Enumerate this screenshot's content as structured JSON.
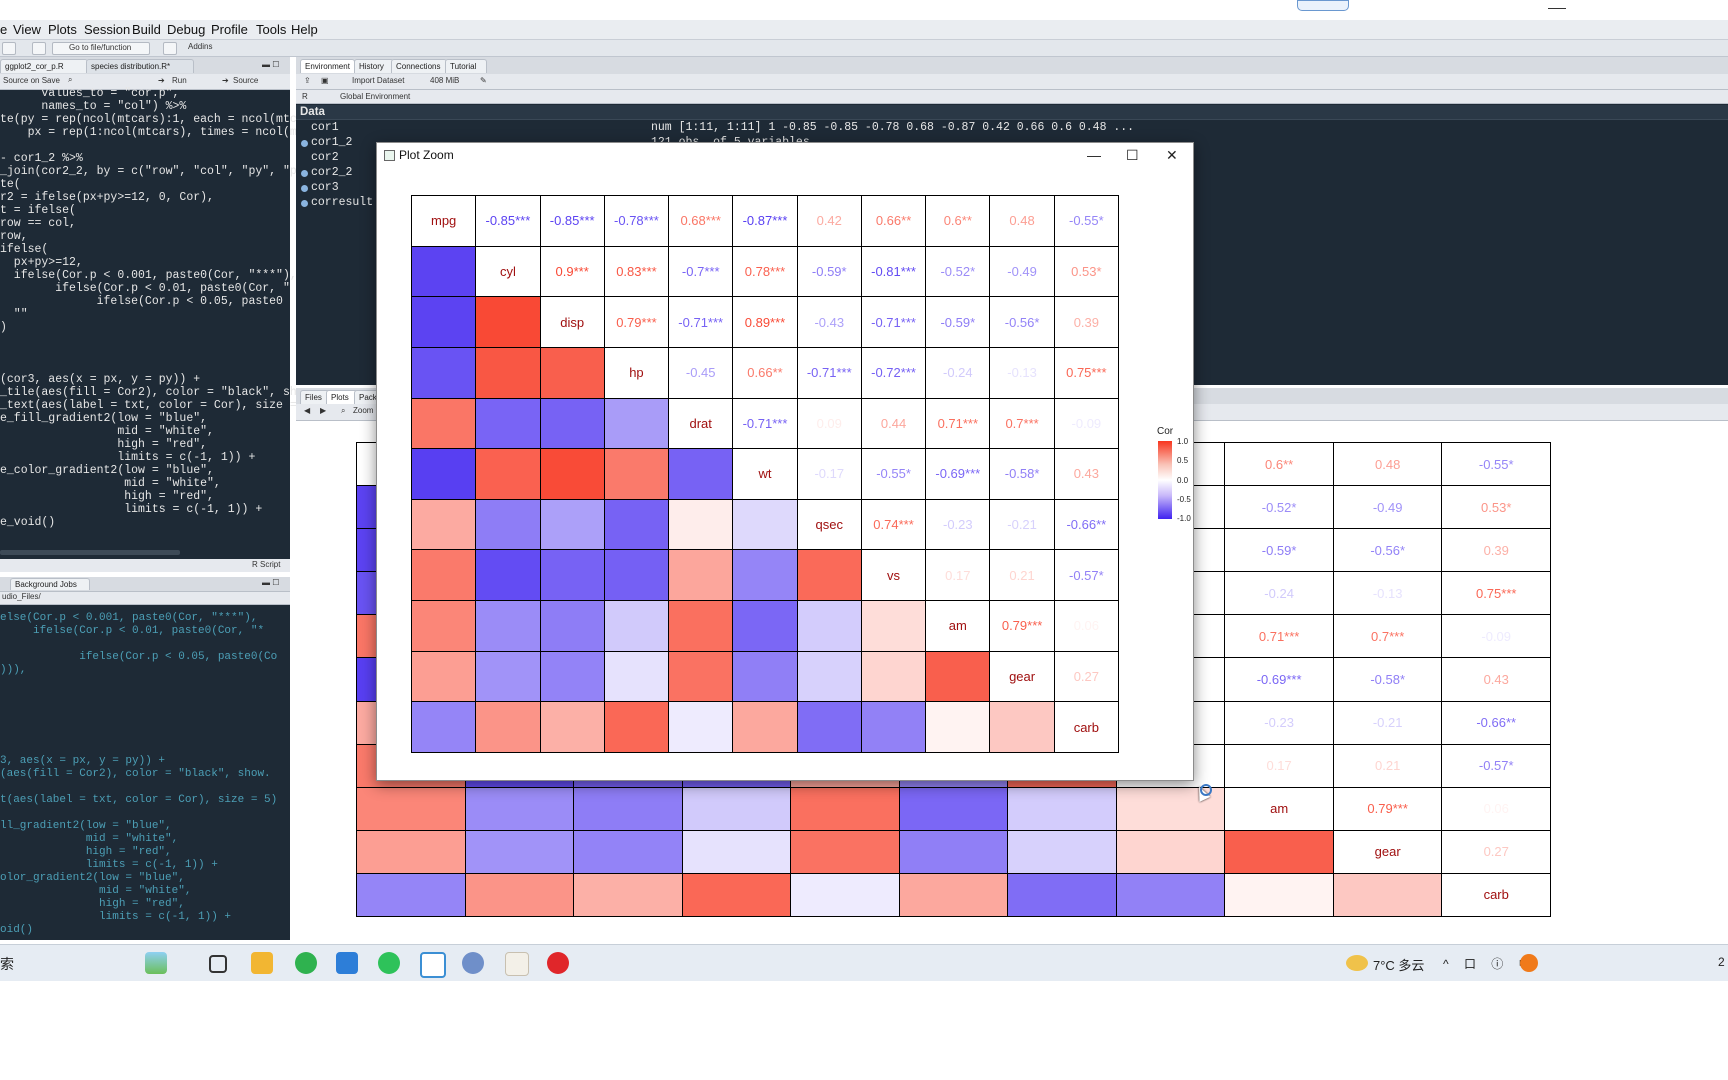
{
  "menu": [
    "e",
    "View",
    "Plots",
    "Session",
    "Build",
    "Debug",
    "Profile",
    "Tools",
    "Help"
  ],
  "toolbar": {
    "goto_placeholder": "Go to file/function",
    "addins": "Addins"
  },
  "source": {
    "tabs": [
      "ggplot2_cor_p.R",
      "species distribution.R*"
    ],
    "source_on_save": "Source on Save",
    "run": "Run",
    "source": "Source",
    "code_lines": [
      "      values_to = \"cor.p\",",
      "      names_to = \"col\") %>%",
      "te(py = rep(ncol(mtcars):1, each = ncol(mtc",
      "    px = rep(1:ncol(mtcars), times = ncol(mt",
      "",
      "- cor1_2 %>%",
      "_join(cor2_2, by = c(\"row\", \"col\", \"py\", \"p",
      "te(",
      "r2 = ifelse(px+py>=12, 0, Cor),",
      "t = ifelse(",
      "row == col,",
      "row,",
      "ifelse(",
      "  px+py>=12,",
      "  ifelse(Cor.p < 0.001, paste0(Cor, \"***\"),",
      "        ifelse(Cor.p < 0.01, paste0(Cor, \"",
      "              ifelse(Cor.p < 0.05, paste0",
      "  \"\"",
      ")",
      "",
      "",
      "",
      "(cor3, aes(x = px, y = py)) +",
      "_tile(aes(fill = Cor2), color = \"black\", sh",
      "_text(aes(label = txt, color = Cor), size =",
      "e_fill_gradient2(low = \"blue\",",
      "                 mid = \"white\",",
      "                 high = \"red\",",
      "                 limits = c(-1, 1)) +",
      "e_color_gradient2(low = \"blue\",",
      "                  mid = \"white\",",
      "                  high = \"red\",",
      "                  limits = c(-1, 1)) +",
      "e_void()"
    ],
    "status": "R Script"
  },
  "console": {
    "tabs": [
      "Background Jobs"
    ],
    "path": "udio_Files/",
    "lines": [
      "",
      "else(Cor.p < 0.001, paste0(Cor, \"***\"),",
      "     ifelse(Cor.p < 0.01, paste0(Cor, \"*",
      "",
      "            ifelse(Cor.p < 0.05, paste0(Co",
      "))),",
      "",
      "",
      "",
      "",
      "",
      "",
      "3, aes(x = px, y = py)) +",
      "(aes(fill = Cor2), color = \"black\", show.",
      "",
      "t(aes(label = txt, color = Cor), size = 5)",
      "",
      "ll_gradient2(low = \"blue\",",
      "             mid = \"white\",",
      "             high = \"red\",",
      "             limits = c(-1, 1)) +",
      "olor_gradient2(low = \"blue\",",
      "               mid = \"white\",",
      "               high = \"red\",",
      "               limits = c(-1, 1)) +",
      "oid()"
    ]
  },
  "environment": {
    "tabs": [
      "Environment",
      "History",
      "Connections",
      "Tutorial"
    ],
    "import_dataset": "Import Dataset",
    "memory": "408 MiB",
    "lang": "R",
    "scope": "Global Environment",
    "section": "Data",
    "rows": [
      {
        "name": "cor1",
        "dot": false,
        "value": "num [1:11, 1:11] 1 -0.85 -0.85 -0.78 0.68 -0.87 0.42 0.66 0.6 0.48 ..."
      },
      {
        "name": "cor1_2",
        "dot": true,
        "value": "121 obs. of 5 variables"
      },
      {
        "name": "cor2",
        "dot": false,
        "value": ""
      },
      {
        "name": "cor2_2",
        "dot": true,
        "value": ""
      },
      {
        "name": "cor3",
        "dot": true,
        "value": ""
      },
      {
        "name": "corresult",
        "dot": true,
        "value": ""
      }
    ]
  },
  "plots_pane": {
    "tabs": [
      "Files",
      "Plots",
      "Pack"
    ],
    "zoom": "Zoom"
  },
  "zoom_window": {
    "title": "Plot Zoom",
    "minimize": "—",
    "maximize": "☐",
    "close": "✕"
  },
  "chart_data": {
    "type": "heatmap",
    "variables": [
      "mpg",
      "cyl",
      "disp",
      "hp",
      "drat",
      "wt",
      "qsec",
      "vs",
      "am",
      "gear",
      "carb"
    ],
    "matrix": [
      [
        1,
        -0.85,
        -0.85,
        -0.78,
        0.68,
        -0.87,
        0.42,
        0.66,
        0.6,
        0.48,
        -0.55
      ],
      [
        -0.85,
        1,
        0.9,
        0.83,
        -0.7,
        0.78,
        -0.59,
        -0.81,
        -0.52,
        -0.49,
        0.53
      ],
      [
        -0.85,
        0.9,
        1,
        0.79,
        -0.71,
        0.89,
        -0.43,
        -0.71,
        -0.59,
        -0.56,
        0.39
      ],
      [
        -0.78,
        0.83,
        0.79,
        1,
        -0.45,
        0.66,
        -0.71,
        -0.72,
        -0.24,
        -0.13,
        0.75
      ],
      [
        0.68,
        -0.7,
        -0.71,
        -0.45,
        1,
        -0.71,
        0.09,
        0.44,
        0.71,
        0.7,
        -0.09
      ],
      [
        -0.87,
        0.78,
        0.89,
        0.66,
        -0.71,
        1,
        -0.17,
        -0.55,
        -0.69,
        -0.58,
        0.43
      ],
      [
        0.42,
        -0.59,
        -0.43,
        -0.71,
        0.09,
        -0.17,
        1,
        0.74,
        -0.23,
        -0.21,
        -0.66
      ],
      [
        0.66,
        -0.81,
        -0.71,
        -0.72,
        0.44,
        -0.55,
        0.74,
        1,
        0.17,
        0.21,
        -0.57
      ],
      [
        0.6,
        -0.52,
        -0.59,
        -0.24,
        0.71,
        -0.69,
        -0.23,
        0.17,
        1,
        0.79,
        0.06
      ],
      [
        0.48,
        -0.49,
        -0.56,
        -0.13,
        0.7,
        -0.58,
        -0.21,
        0.21,
        0.79,
        1,
        0.27
      ],
      [
        -0.55,
        0.53,
        0.39,
        0.75,
        -0.09,
        0.43,
        -0.66,
        -0.57,
        0.06,
        0.27,
        1
      ]
    ],
    "labels": [
      [
        "mpg",
        "-0.85***",
        "-0.85***",
        "-0.78***",
        "0.68***",
        "-0.87***",
        "0.42",
        "0.66**",
        "0.6**",
        "0.48",
        "-0.55*"
      ],
      [
        "",
        "cyl",
        "0.9***",
        "0.83***",
        "-0.7***",
        "0.78***",
        "-0.59*",
        "-0.81***",
        "-0.52*",
        "-0.49",
        "0.53*"
      ],
      [
        "",
        "",
        "disp",
        "0.79***",
        "-0.71***",
        "0.89***",
        "-0.43",
        "-0.71***",
        "-0.59*",
        "-0.56*",
        "0.39"
      ],
      [
        "",
        "",
        "",
        "hp",
        "-0.45",
        "0.66**",
        "-0.71***",
        "-0.72***",
        "-0.24",
        "-0.13",
        "0.75***"
      ],
      [
        "",
        "",
        "",
        "",
        "drat",
        "-0.71***",
        "0.09",
        "0.44",
        "0.71***",
        "0.7***",
        "-0.09"
      ],
      [
        "",
        "",
        "",
        "",
        "",
        "wt",
        "-0.17",
        "-0.55*",
        "-0.69***",
        "-0.58*",
        "0.43"
      ],
      [
        "",
        "",
        "",
        "",
        "",
        "",
        "qsec",
        "0.74***",
        "-0.23",
        "-0.21",
        "-0.66**"
      ],
      [
        "",
        "",
        "",
        "",
        "",
        "",
        "",
        "vs",
        "0.17",
        "0.21",
        "-0.57*"
      ],
      [
        "",
        "",
        "",
        "",
        "",
        "",
        "",
        "",
        "am",
        "0.79***",
        "0.06"
      ],
      [
        "",
        "",
        "",
        "",
        "",
        "",
        "",
        "",
        "",
        "gear",
        "0.27"
      ],
      [
        "",
        "",
        "",
        "",
        "",
        "",
        "",
        "",
        "",
        "",
        "carb"
      ]
    ],
    "legend": {
      "title": "Cor",
      "ticks": [
        "1.0",
        "0.5",
        "0.0",
        "-0.5",
        "-1.0"
      ]
    },
    "scale": {
      "low": "#3f22f0",
      "mid": "#ffffff",
      "high": "#f8351e",
      "limits": [
        -1,
        1
      ]
    },
    "diagonal_color": "#a01010"
  },
  "taskbar": {
    "search_fragment": "索",
    "weather": "7°C 多云",
    "tray": "^ 口 ⓘ 中",
    "clock": "2"
  }
}
